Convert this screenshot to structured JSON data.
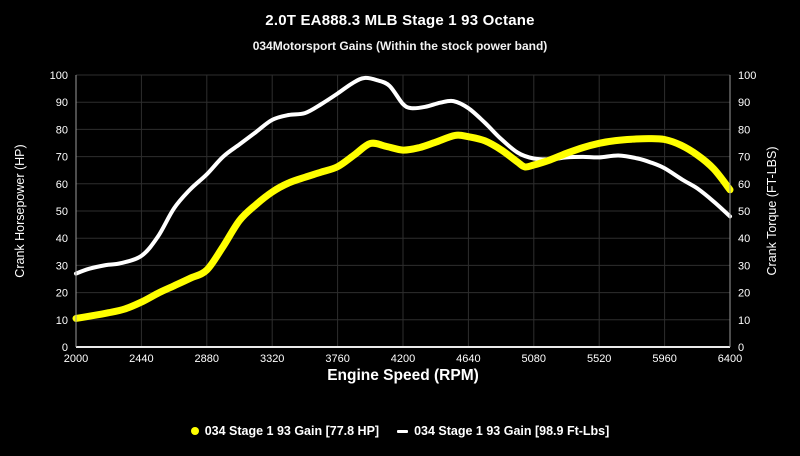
{
  "header": {
    "title": "2.0T EA888.3 MLB Stage 1 93 Octane",
    "subtitle": "034Motorsport Gains (Within the stock power band)"
  },
  "chart_data": {
    "type": "line",
    "title": "2.0T EA888.3 MLB Stage 1 93 Octane",
    "subtitle": "034Motorsport Gains (Within the stock power band)",
    "xlabel": "Engine Speed (RPM)",
    "ylabel_left": "Crank Horsepower (HP)",
    "ylabel_right": "Crank Torque (FT-LBS)",
    "x_range": [
      2000,
      6400
    ],
    "x_ticks": [
      2000,
      2440,
      2880,
      3320,
      3760,
      4200,
      4640,
      5080,
      5520,
      5960,
      6400
    ],
    "y_range": [
      0,
      100
    ],
    "y_tick_step": 10,
    "grid": true,
    "legend_position": "bottom",
    "colors": {
      "background": "#000000",
      "gridline": "#2e2e2e",
      "axis_line": "#eaeaea",
      "side_axis_line": "#9a9a9a",
      "tick_text": "#ffffff"
    },
    "series": [
      {
        "name": "034 Stage 1 93 Gain [77.8 HP]",
        "axis": "left",
        "color": "#ffff00",
        "stroke_width": 7,
        "marker": "dot",
        "x": [
          2000,
          2110,
          2220,
          2330,
          2440,
          2560,
          2660,
          2770,
          2880,
          2990,
          3100,
          3210,
          3320,
          3430,
          3540,
          3650,
          3760,
          3870,
          3980,
          4090,
          4200,
          4310,
          4420,
          4550,
          4640,
          4750,
          4860,
          4970,
          5020,
          5080,
          5190,
          5300,
          5410,
          5520,
          5630,
          5740,
          5850,
          5960,
          6070,
          6180,
          6290,
          6400
        ],
        "y": [
          10.5,
          11.5,
          12.6,
          14,
          16.5,
          20,
          22.5,
          25.3,
          28.3,
          37,
          46.5,
          52.3,
          57,
          60.3,
          62.4,
          64.3,
          66.3,
          70.5,
          74.8,
          73.7,
          72.4,
          73.3,
          75.3,
          77.8,
          77.3,
          75.8,
          72.5,
          68,
          66.2,
          66.9,
          68.8,
          71.2,
          73.3,
          74.9,
          75.9,
          76.4,
          76.6,
          76.3,
          74.2,
          70.6,
          65.5,
          57.8
        ],
        "peak_value_label": "77.8 HP"
      },
      {
        "name": "034 Stage 1 93 Gain [98.9 Ft-Lbs]",
        "axis": "right",
        "color": "#ffffff",
        "stroke_width": 4,
        "marker": "dash",
        "x": [
          2000,
          2090,
          2200,
          2300,
          2440,
          2550,
          2660,
          2770,
          2880,
          2990,
          3100,
          3210,
          3320,
          3430,
          3540,
          3650,
          3760,
          3860,
          3940,
          4030,
          4110,
          4200,
          4260,
          4350,
          4450,
          4540,
          4640,
          4750,
          4850,
          4970,
          5080,
          5200,
          5300,
          5410,
          5520,
          5650,
          5780,
          5870,
          5960,
          6080,
          6180,
          6290,
          6400
        ],
        "y": [
          27,
          28.8,
          30.1,
          30.8,
          33.5,
          40.5,
          51,
          58,
          63.5,
          70,
          74.5,
          79,
          83.5,
          85.3,
          86,
          89.3,
          93.2,
          97,
          98.9,
          98,
          96,
          89.3,
          87.8,
          88.3,
          89.8,
          90.4,
          87.8,
          82.5,
          77,
          71.5,
          69.3,
          69,
          69.7,
          69.9,
          69.7,
          70.4,
          69.3,
          67.8,
          65.7,
          61.5,
          58.3,
          53.5,
          48
        ],
        "peak_value_label": "98.9 Ft-Lbs"
      }
    ]
  }
}
